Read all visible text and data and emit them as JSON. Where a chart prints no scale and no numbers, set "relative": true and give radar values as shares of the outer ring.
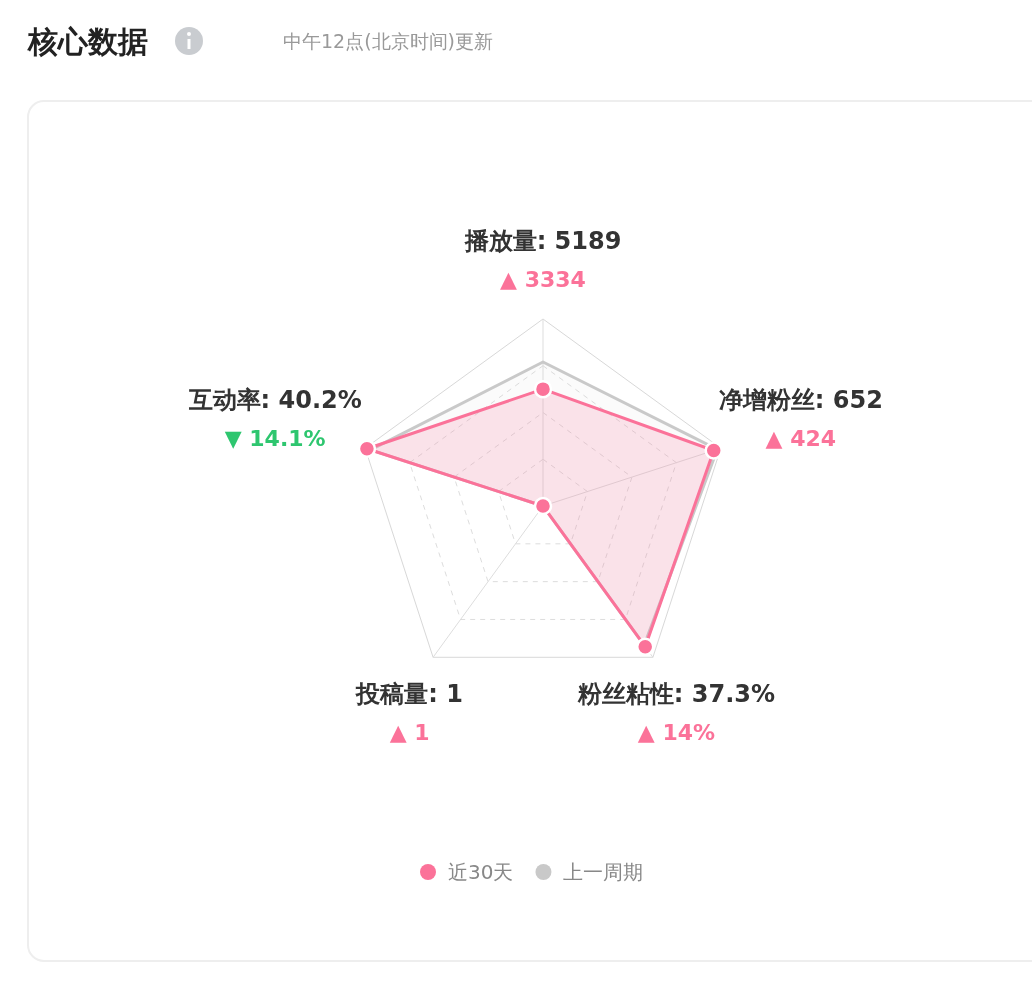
{
  "chart_data": {
    "type": "radar",
    "title": "核心数据",
    "subtitle": "中午12点(北京时间)更新",
    "relative": true,
    "categories": [
      "播放量: 5189",
      "净增粉丝: 652",
      "粉丝粘性: 37.3%",
      "投稿量: 1",
      "互动率: 40.2%"
    ],
    "annotations": [
      "▲ 3334",
      "▲ 424",
      "▲ 14%",
      "▲ 1",
      "▼ 14.1%"
    ],
    "colors": [
      "#fb7299",
      "#fb7299",
      "#fb7299",
      "#fb7299",
      "#2ec66f"
    ],
    "series": [
      {
        "name": "近30天",
        "color": "#fb7299",
        "values": [
          0.625,
          0.96,
          0.93,
          0,
          0.99
        ]
      },
      {
        "name": "上一周期",
        "color": "#c9c9c9",
        "values": [
          0.77,
          0.98,
          0.92,
          0,
          0.97
        ]
      }
    ],
    "legend": "bottom",
    "marker": "circle"
  }
}
